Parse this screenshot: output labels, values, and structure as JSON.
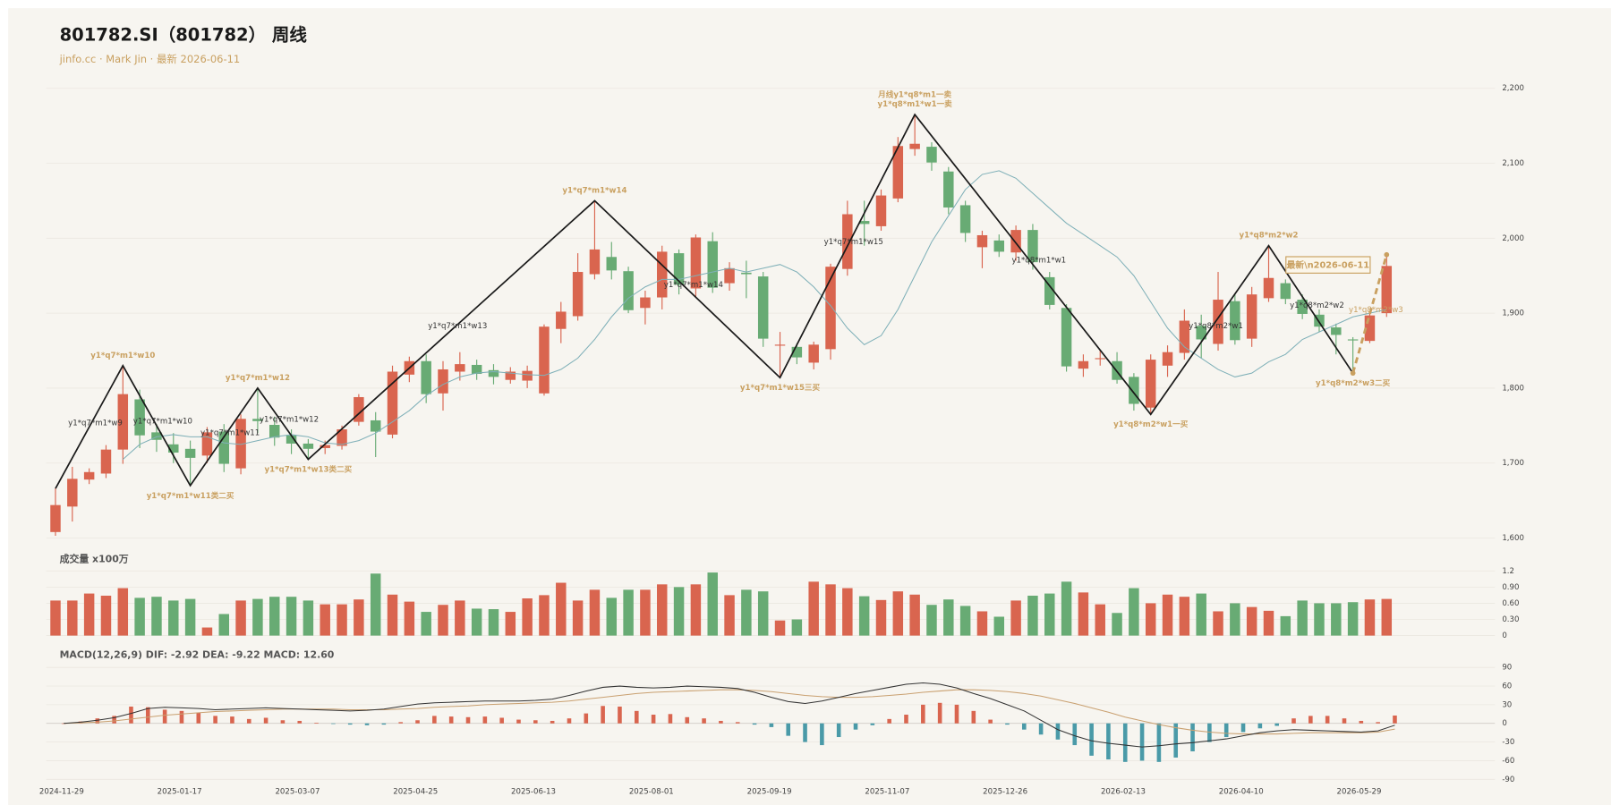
{
  "chart_data": [
    {
      "type": "candlestick",
      "title": "801782.SI（801782） 周线",
      "subtitle": "jinfo.cc · Mark Jin · 最新 2026-06-11",
      "categories": [
        "2024-11-29",
        null,
        null,
        null,
        null,
        null,
        null,
        "2025-01-17",
        null,
        null,
        null,
        null,
        null,
        null,
        "2025-03-07",
        null,
        null,
        null,
        null,
        null,
        null,
        "2025-04-25",
        null,
        null,
        null,
        null,
        null,
        null,
        "2025-06-13",
        null,
        null,
        null,
        null,
        null,
        null,
        "2025-08-01",
        null,
        null,
        null,
        null,
        null,
        null,
        "2025-09-19",
        null,
        null,
        null,
        null,
        null,
        null,
        "2025-11-07",
        null,
        null,
        null,
        null,
        null,
        null,
        "2025-12-26",
        null,
        null,
        null,
        null,
        null,
        null,
        "2026-02-13",
        null,
        null,
        null,
        null,
        null,
        null,
        "2026-04-10",
        null,
        null,
        null,
        null,
        null,
        null,
        "2026-05-29",
        null,
        null
      ],
      "open": [
        1608,
        1642,
        1678,
        1686,
        1718,
        1785,
        1741,
        1725,
        1719,
        1710,
        1742,
        1693,
        1759,
        1751,
        1737,
        1726,
        1720,
        1723,
        1755,
        1757,
        1738,
        1818,
        1836,
        1793,
        1822,
        1831,
        1824,
        1811,
        1810,
        1793,
        1879,
        1896,
        1952,
        1975,
        1956,
        1907,
        1921,
        1980,
        1933,
        1996,
        1940,
        1954,
        1949,
        1857,
        1855,
        1834,
        1852,
        1959,
        2023,
        2016,
        2053,
        2119,
        2122,
        2089,
        2044,
        1988,
        1997,
        1981,
        2011,
        1948,
        1907,
        1826,
        1839,
        1836,
        1815,
        1774,
        1830,
        1847,
        1883,
        1859,
        1916,
        1866,
        1920,
        1940,
        1918,
        1898,
        1881,
        1865,
        1863,
        1900
      ],
      "high": [
        1666,
        1695,
        1693,
        1724,
        1830,
        1798,
        1752,
        1740,
        1730,
        1748,
        1752,
        1765,
        1800,
        1762,
        1745,
        1732,
        1730,
        1750,
        1792,
        1768,
        1830,
        1842,
        1845,
        1836,
        1848,
        1838,
        1832,
        1828,
        1830,
        1885,
        1915,
        1980,
        2050,
        1995,
        1962,
        1930,
        1990,
        1985,
        2005,
        2008,
        1968,
        1970,
        1955,
        1875,
        1860,
        1862,
        1966,
        2050,
        2050,
        2065,
        2135,
        2165,
        2128,
        2095,
        2050,
        2010,
        2005,
        2017,
        2019,
        1955,
        1912,
        1845,
        1850,
        1848,
        1820,
        1845,
        1857,
        1905,
        1898,
        1955,
        1925,
        1935,
        1990,
        1945,
        1925,
        1905,
        1886,
        1868,
        1900,
        1978
      ],
      "low": [
        1603,
        1622,
        1672,
        1680,
        1699,
        1720,
        1715,
        1700,
        1670,
        1700,
        1688,
        1685,
        1740,
        1723,
        1712,
        1705,
        1712,
        1718,
        1750,
        1708,
        1733,
        1808,
        1780,
        1770,
        1810,
        1811,
        1805,
        1806,
        1800,
        1790,
        1860,
        1890,
        1945,
        1945,
        1900,
        1885,
        1905,
        1925,
        1922,
        1927,
        1930,
        1920,
        1855,
        1814,
        1832,
        1825,
        1838,
        1950,
        1990,
        2010,
        2048,
        2110,
        2090,
        2032,
        1995,
        1960,
        1975,
        1970,
        1958,
        1905,
        1822,
        1815,
        1830,
        1806,
        1770,
        1765,
        1815,
        1838,
        1840,
        1850,
        1858,
        1855,
        1915,
        1912,
        1892,
        1875,
        1845,
        1820,
        1860,
        1895
      ],
      "close": [
        1644,
        1679,
        1688,
        1718,
        1792,
        1737,
        1731,
        1714,
        1707,
        1741,
        1699,
        1759,
        1756,
        1734,
        1726,
        1719,
        1724,
        1745,
        1788,
        1742,
        1822,
        1836,
        1792,
        1825,
        1832,
        1819,
        1815,
        1822,
        1823,
        1882,
        1902,
        1955,
        1985,
        1957,
        1904,
        1921,
        1982,
        1938,
        2001,
        1934,
        1960,
        1952,
        1866,
        1858,
        1841,
        1858,
        1962,
        2032,
        2019,
        2057,
        2123,
        2126,
        2101,
        2041,
        2007,
        2004,
        1982,
        2011,
        1968,
        1911,
        1829,
        1836,
        1840,
        1811,
        1779,
        1838,
        1848,
        1890,
        1865,
        1918,
        1864,
        1925,
        1947,
        1919,
        1899,
        1882,
        1871,
        1864,
        1897,
        1963
      ],
      "up_color": "#d9654f",
      "down_color": "#68ab74",
      "ma_values": [
        null,
        null,
        null,
        null,
        1705,
        1725,
        1735,
        1738,
        1735,
        1735,
        1727,
        1725,
        1730,
        1735,
        1738,
        1735,
        1727,
        1725,
        1730,
        1740,
        1755,
        1770,
        1790,
        1805,
        1815,
        1820,
        1822,
        1820,
        1818,
        1817,
        1825,
        1840,
        1865,
        1895,
        1920,
        1935,
        1945,
        1945,
        1950,
        1955,
        1960,
        1955,
        1960,
        1965,
        1955,
        1935,
        1910,
        1880,
        1858,
        1870,
        1905,
        1950,
        1995,
        2030,
        2065,
        2085,
        2090,
        2080,
        2060,
        2040,
        2020,
        2005,
        1990,
        1975,
        1950,
        1915,
        1880,
        1855,
        1840,
        1825,
        1815,
        1820,
        1835,
        1845,
        1865,
        1875,
        1885,
        1895,
        1900,
        1905
      ],
      "ma_color": "#7fb0b8",
      "pivots": [
        {
          "index": 0,
          "value": 1666
        },
        {
          "index": 4,
          "value": 1830,
          "labels": [
            "y1*q7*m1*w10"
          ]
        },
        {
          "index": 8,
          "value": 1670,
          "labels": [
            "y1*q7*m1*w11类二买"
          ]
        },
        {
          "index": 12,
          "value": 1800,
          "labels": [
            "y1*q7*m1*w12"
          ]
        },
        {
          "index": 15,
          "value": 1705,
          "labels": [
            "y1*q7*m1*w13类二买"
          ]
        },
        {
          "index": 32,
          "value": 2050,
          "labels": [
            "y1*q7*m1*w14"
          ]
        },
        {
          "index": 43,
          "value": 1814,
          "labels": [
            "y1*q7*m1*w15三买"
          ]
        },
        {
          "index": 51,
          "value": 2165,
          "labels": [
            "月线y1*q8*m1一卖",
            "y1*q8*m1*w1一卖"
          ]
        },
        {
          "index": 65,
          "value": 1765,
          "labels": [
            "y1*q8*m2*w1一买"
          ]
        },
        {
          "index": 72,
          "value": 1990,
          "labels": [
            "y1*q8*m2*w2"
          ]
        },
        {
          "index": 77,
          "value": 1820,
          "labels": [
            "y1*q8*m2*w3二买"
          ]
        },
        {
          "index": 79,
          "value": 1978
        }
      ],
      "segment_labels": [
        "y1*q7*m1*w9",
        "y1*q7*m1*w10",
        "y1*q7*m1*w11",
        "y1*q7*m1*w12",
        "y1*q7*m1*w13",
        "y1*q7*m1*w14",
        "y1*q7*m1*w15",
        "y1*q8*m1*w1",
        "y1*q8*m2*w1",
        "y1*q8*m2*w2",
        "y1*q8*m2*w3"
      ],
      "stroke_color": "#1a1a1a",
      "projection_color": "#c9a060",
      "latest_note": "最新\\n2026-06-11",
      "ylim": [
        1600,
        2200
      ],
      "yticks": [
        {
          "value": 1600,
          "label": "1,600"
        },
        {
          "value": 1700,
          "label": "1,700"
        },
        {
          "value": 1800,
          "label": "1,800"
        },
        {
          "value": 1900,
          "label": "1,900"
        },
        {
          "value": 2000,
          "label": "2,000"
        },
        {
          "value": 2100,
          "label": "2,100"
        },
        {
          "value": 2200,
          "label": "2,200"
        }
      ],
      "grid": true
    },
    {
      "type": "bar",
      "title": "成交量 x100万",
      "values": [
        0.65,
        0.65,
        0.78,
        0.74,
        0.88,
        0.7,
        0.72,
        0.65,
        0.68,
        0.15,
        0.4,
        0.65,
        0.68,
        0.72,
        0.72,
        0.65,
        0.58,
        0.58,
        0.67,
        1.15,
        0.76,
        0.63,
        0.44,
        0.57,
        0.65,
        0.5,
        0.49,
        0.44,
        0.69,
        0.75,
        0.98,
        0.65,
        0.85,
        0.7,
        0.85,
        0.85,
        0.95,
        0.9,
        0.95,
        1.17,
        0.75,
        0.85,
        0.82,
        0.28,
        0.3,
        1.0,
        0.95,
        0.88,
        0.73,
        0.66,
        0.82,
        0.76,
        0.57,
        0.67,
        0.55,
        0.45,
        0.35,
        0.65,
        0.74,
        0.78,
        1.0,
        0.8,
        0.58,
        0.42,
        0.88,
        0.6,
        0.76,
        0.72,
        0.78,
        0.45,
        0.6,
        0.53,
        0.46,
        0.36,
        0.65,
        0.6,
        0.6,
        0.62,
        0.67,
        0.68
      ],
      "ylim": [
        0,
        1.2
      ],
      "yticks": [
        0,
        {
          "value": 0.3,
          "label": "0.30"
        },
        {
          "value": 0.6,
          "label": "0.60"
        },
        {
          "value": 0.9,
          "label": "0.90"
        },
        1.2
      ],
      "grid": true
    },
    {
      "type": "macd",
      "title": "MACD(12,26,9) DIF: -2.92 DEA: -9.22 MACD: 12.60",
      "histogram": [
        0,
        3,
        8,
        12,
        27,
        26,
        22,
        20,
        17,
        12,
        11,
        7,
        9,
        5,
        4,
        1,
        -1,
        -2,
        -3,
        -2,
        2,
        5,
        12,
        11,
        10,
        11,
        9,
        6,
        5,
        4,
        8,
        16,
        28,
        27,
        20,
        14,
        15,
        10,
        8,
        4,
        2,
        -2,
        -6,
        -20,
        -30,
        -35,
        -22,
        -10,
        -3,
        7,
        14,
        30,
        33,
        30,
        20,
        6,
        -2,
        -10,
        -18,
        -26,
        -35,
        -52,
        -58,
        -62,
        -60,
        -62,
        -55,
        -45,
        -30,
        -22,
        -14,
        -8,
        -4,
        8,
        12,
        12,
        8,
        4,
        2,
        12.6
      ],
      "dif": [
        0,
        2,
        5,
        9,
        16,
        24,
        26,
        25,
        24,
        22,
        23,
        24,
        25,
        24,
        23,
        22,
        21,
        20,
        21,
        23,
        27,
        31,
        33,
        34,
        35,
        36,
        36,
        36,
        37,
        39,
        45,
        52,
        58,
        60,
        58,
        57,
        58,
        60,
        59,
        58,
        56,
        50,
        42,
        35,
        32,
        36,
        42,
        48,
        53,
        58,
        63,
        65,
        63,
        57,
        48,
        40,
        30,
        20,
        5,
        -10,
        -20,
        -28,
        -32,
        -35,
        -38,
        -36,
        -33,
        -31,
        -28,
        -25,
        -20,
        -15,
        -12,
        -10,
        -11,
        -12,
        -13,
        -14,
        -12,
        -2.92
      ],
      "dea": [
        0,
        1,
        2,
        4,
        7,
        10,
        13,
        15,
        17,
        19,
        20,
        21,
        22,
        23,
        23,
        23,
        23,
        22,
        22,
        22,
        23,
        24,
        26,
        27,
        28,
        30,
        31,
        32,
        33,
        34,
        36,
        39,
        42,
        45,
        48,
        50,
        51,
        52,
        53,
        54,
        54,
        53,
        51,
        48,
        45,
        43,
        42,
        42,
        43,
        45,
        47,
        50,
        52,
        54,
        54,
        53,
        51,
        48,
        44,
        38,
        32,
        25,
        18,
        10,
        4,
        -2,
        -7,
        -11,
        -14,
        -16,
        -17,
        -17,
        -17,
        -16,
        -15,
        -15,
        -15,
        -15,
        -14,
        -9.22
      ],
      "dif_color": "#333333",
      "dea_color": "#c9a070",
      "pos_color": "#d9654f",
      "neg_color": "#4a9aa8",
      "ylim": [
        -90,
        90
      ],
      "yticks": [
        90,
        60,
        30,
        0,
        -30,
        -60,
        -90
      ],
      "grid": true
    }
  ]
}
